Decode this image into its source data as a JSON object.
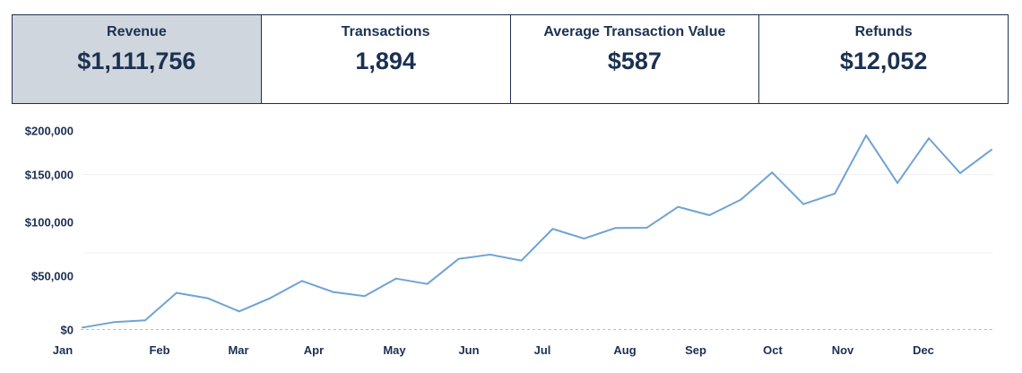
{
  "kpis": [
    {
      "title": "Revenue",
      "value": "$1,111,756",
      "selected": true
    },
    {
      "title": "Transactions",
      "value": "1,894",
      "selected": false
    },
    {
      "title": "Average Transaction Value",
      "value": "$587",
      "selected": false
    },
    {
      "title": "Refunds",
      "value": "$12,052",
      "selected": false
    }
  ],
  "chart_data": {
    "type": "line",
    "title": "",
    "xlabel": "",
    "ylabel": "",
    "ylim": [
      0,
      200000
    ],
    "y_ticks": [
      "$0",
      "$50,000",
      "$100,000",
      "$150,000",
      "$200,000"
    ],
    "y_tick_values": [
      0,
      50000,
      100000,
      150000,
      200000
    ],
    "x_ticks": [
      "Jan",
      "Feb",
      "Mar",
      "Apr",
      "May",
      "Jun",
      "Jul",
      "Aug",
      "Sep",
      "Oct",
      "Nov",
      "Dec"
    ],
    "grid": true,
    "line_color": "#6fa3d4",
    "series": [
      {
        "values": [
          2000,
          7000,
          8700,
          34200,
          29200,
          17000,
          29500,
          45300,
          35000,
          31200,
          47500,
          42500,
          65800,
          69800,
          64200,
          93700,
          84700,
          94500,
          94700,
          115900,
          107200,
          123400,
          152000,
          118700,
          129700,
          194500,
          140900,
          191200,
          151300,
          178100
        ]
      }
    ]
  },
  "colors": {
    "text": "#1b3152",
    "selected_card": "#d0d6dd",
    "border": "#1b3152"
  }
}
